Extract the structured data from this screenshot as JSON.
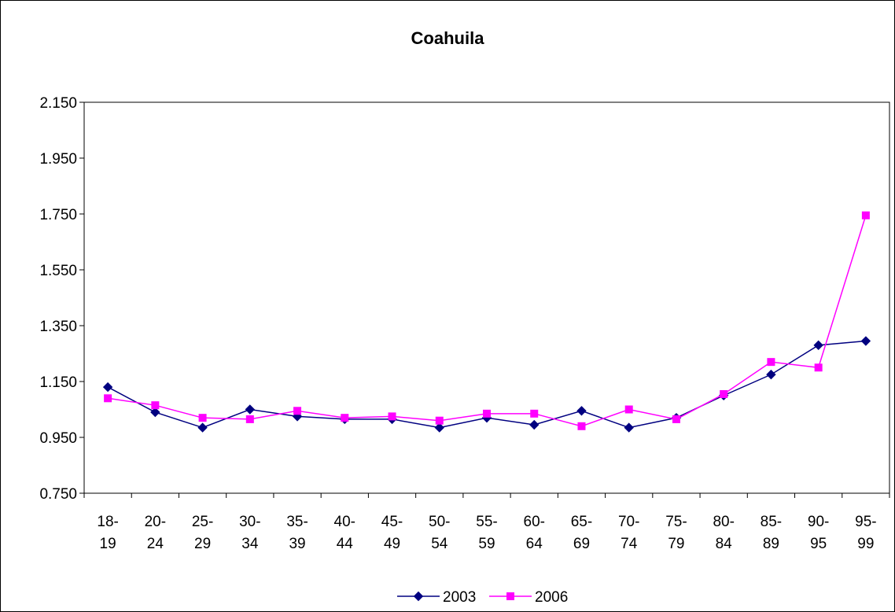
{
  "chart_data": {
    "type": "line",
    "title": "Coahuila",
    "xlabel": "",
    "ylabel": "",
    "ylim": [
      0.75,
      2.15
    ],
    "yticks": [
      0.75,
      0.95,
      1.15,
      1.35,
      1.55,
      1.75,
      1.95,
      2.15
    ],
    "ytick_labels": [
      "0.750",
      "0.950",
      "1.150",
      "1.350",
      "1.550",
      "1.750",
      "1.950",
      "2.150"
    ],
    "categories": [
      [
        "18-",
        "19"
      ],
      [
        "20-",
        "24"
      ],
      [
        "25-",
        "29"
      ],
      [
        "30-",
        "34"
      ],
      [
        "35-",
        "39"
      ],
      [
        "40-",
        "44"
      ],
      [
        "45-",
        "49"
      ],
      [
        "50-",
        "54"
      ],
      [
        "55-",
        "59"
      ],
      [
        "60-",
        "64"
      ],
      [
        "65-",
        "69"
      ],
      [
        "70-",
        "74"
      ],
      [
        "75-",
        "79"
      ],
      [
        "80-",
        "84"
      ],
      [
        "85-",
        "89"
      ],
      [
        "90-",
        "95"
      ],
      [
        "95-",
        "99"
      ]
    ],
    "grid": false,
    "legend_position": "bottom",
    "series": [
      {
        "name": "2003",
        "color": "#000080",
        "marker": "diamond",
        "values": [
          1.13,
          1.04,
          0.985,
          1.05,
          1.025,
          1.015,
          1.015,
          0.985,
          1.02,
          0.995,
          1.045,
          0.985,
          1.02,
          1.1,
          1.175,
          1.28,
          1.295
        ]
      },
      {
        "name": "2006",
        "color": "#FF00FF",
        "marker": "square",
        "values": [
          1.09,
          1.065,
          1.02,
          1.015,
          1.045,
          1.02,
          1.025,
          1.01,
          1.035,
          1.035,
          0.99,
          1.05,
          1.015,
          1.105,
          1.22,
          1.2,
          1.745
        ]
      }
    ]
  }
}
